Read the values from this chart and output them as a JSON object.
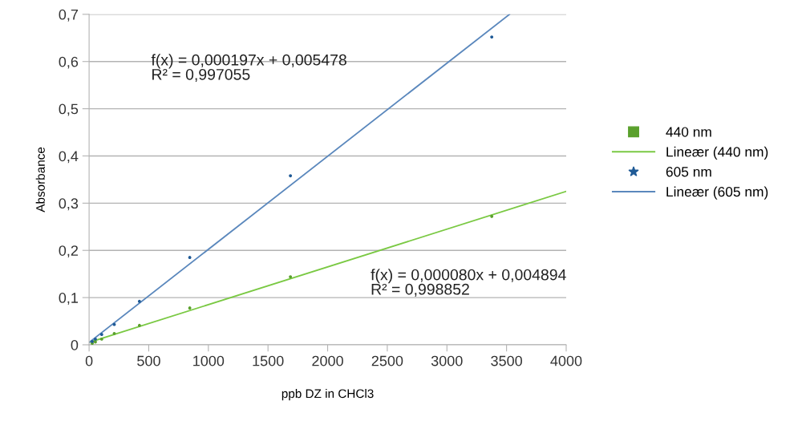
{
  "chart_data": {
    "type": "scatter",
    "xlabel": "ppb DZ in CHCl3",
    "ylabel": "Absorbance",
    "xlim": [
      0,
      4000
    ],
    "xticks": [
      0,
      500,
      1000,
      1500,
      2000,
      2500,
      3000,
      3500,
      4000
    ],
    "ylim": [
      0,
      0.7
    ],
    "yticks": [
      0,
      {
        "value": 0.1,
        "label": "0,1"
      },
      {
        "value": 0.2,
        "label": "0,2"
      },
      {
        "value": 0.3,
        "label": "0,3"
      },
      {
        "value": 0.4,
        "label": "0,4"
      },
      {
        "value": 0.5,
        "label": "0,5"
      },
      {
        "value": 0.6,
        "label": "0,6"
      },
      {
        "value": 0.7,
        "label": "0,7"
      }
    ],
    "grid": "y",
    "legend": "right",
    "series": [
      {
        "name": "440 nm",
        "marker": "square",
        "color": "#5aa02c",
        "x": [
          26.4,
          52.8,
          105.6,
          211,
          422,
          844,
          1688,
          3376
        ],
        "values": [
          0.003,
          0.006,
          0.012,
          0.024,
          0.041,
          0.078,
          0.144,
          0.272
        ]
      },
      {
        "name": "Lineær (440 nm)",
        "type": "line",
        "marker": "none",
        "color": "#7ac943",
        "x": [
          0,
          4000
        ],
        "values": [
          0.005,
          0.325
        ]
      },
      {
        "name": "605 nm",
        "marker": "star",
        "color": "#1f5a96",
        "x": [
          26.4,
          52.8,
          105.6,
          211,
          422,
          844,
          1688,
          3376
        ],
        "values": [
          0.007,
          0.012,
          0.022,
          0.043,
          0.092,
          0.185,
          0.358,
          0.652
        ]
      },
      {
        "name": "Lineær (605 nm)",
        "type": "line",
        "marker": "none",
        "color": "#5b88bd",
        "x": [
          0,
          3525
        ],
        "values": [
          0.005,
          0.7
        ]
      }
    ],
    "annotations": [
      "f(x) = 0,000197x + 0,005478\nR² = 0,997055",
      "f(x) = 0,000080x + 0,004894\nR² = 0,998852"
    ]
  }
}
